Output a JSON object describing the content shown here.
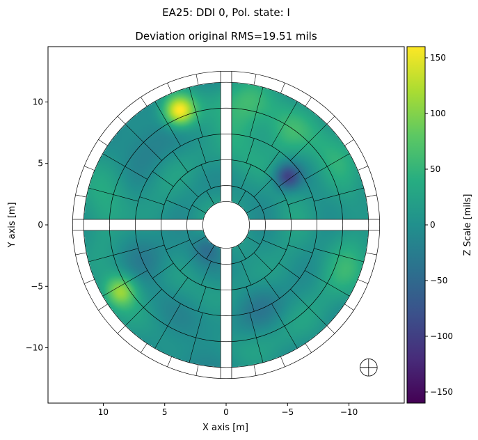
{
  "figure_title": "EA25: DDI 0, Pol. state: I",
  "chart_data": {
    "type": "heatmap",
    "title": "Deviation original RMS=19.51 mils",
    "xlabel": "X axis [m]",
    "ylabel": "Y axis [m]",
    "xlim": [
      14.5,
      -14.5
    ],
    "ylim": [
      -14.5,
      14.5
    ],
    "x_inverted": true,
    "x_ticks": [
      10,
      5,
      0,
      -5,
      -10
    ],
    "x_tick_labels": [
      "10",
      "5",
      "0",
      "−5",
      "−10"
    ],
    "y_ticks": [
      10,
      5,
      0,
      -5,
      -10
    ],
    "y_tick_labels": [
      "10",
      "5",
      "0",
      "−5",
      "−10"
    ],
    "dish": {
      "outer_radius": 12.5,
      "inner_radius": 1.9,
      "panel_ring_radii": [
        1.9,
        3.2,
        5.3,
        7.4,
        9.5,
        11.6,
        12.5
      ],
      "panels_per_quadrant": [
        3,
        4,
        5,
        6,
        6,
        8
      ],
      "feed_leg_halfwidth": 0.45
    },
    "colorbar": {
      "label": "Z Scale [mils]",
      "min": -160,
      "max": 160,
      "ticks": [
        150,
        100,
        50,
        0,
        -50,
        -100,
        -150
      ],
      "tick_labels": [
        "150",
        "100",
        "50",
        "0",
        "−50",
        "−100",
        "−150"
      ],
      "colormap": "viridis"
    },
    "background_value": 10,
    "features": [
      {
        "x": 3.8,
        "y": 9.3,
        "value": 155,
        "sigma": 0.9
      },
      {
        "x": -5.0,
        "y": 3.9,
        "value": -105,
        "sigma": 0.75
      },
      {
        "x": 8.6,
        "y": -5.4,
        "value": 95,
        "sigma": 0.9
      },
      {
        "x": -2.0,
        "y": 10.0,
        "value": 40,
        "sigma": 1.5
      },
      {
        "x": -5.0,
        "y": 7.2,
        "value": 40,
        "sigma": 1.3
      },
      {
        "x": 7.0,
        "y": 7.0,
        "value": -30,
        "sigma": 2.0
      },
      {
        "x": 5.8,
        "y": -2.6,
        "value": -35,
        "sigma": 1.4
      },
      {
        "x": 1.5,
        "y": -1.9,
        "value": -45,
        "sigma": 0.8
      },
      {
        "x": -2.8,
        "y": -6.2,
        "value": -30,
        "sigma": 1.4
      },
      {
        "x": -10.2,
        "y": -3.8,
        "value": 30,
        "sigma": 1.6
      },
      {
        "x": -1.0,
        "y": 7.6,
        "value": 35,
        "sigma": 1.3
      },
      {
        "x": 10.5,
        "y": 2.5,
        "value": 20,
        "sigma": 2.0
      },
      {
        "x": -9.0,
        "y": 6.0,
        "value": 25,
        "sigma": 1.8
      },
      {
        "x": 3.0,
        "y": -9.5,
        "value": -20,
        "sigma": 2.0
      }
    ],
    "marker": {
      "x": -11.6,
      "y": -11.6,
      "symbol": "circle-cross"
    }
  }
}
